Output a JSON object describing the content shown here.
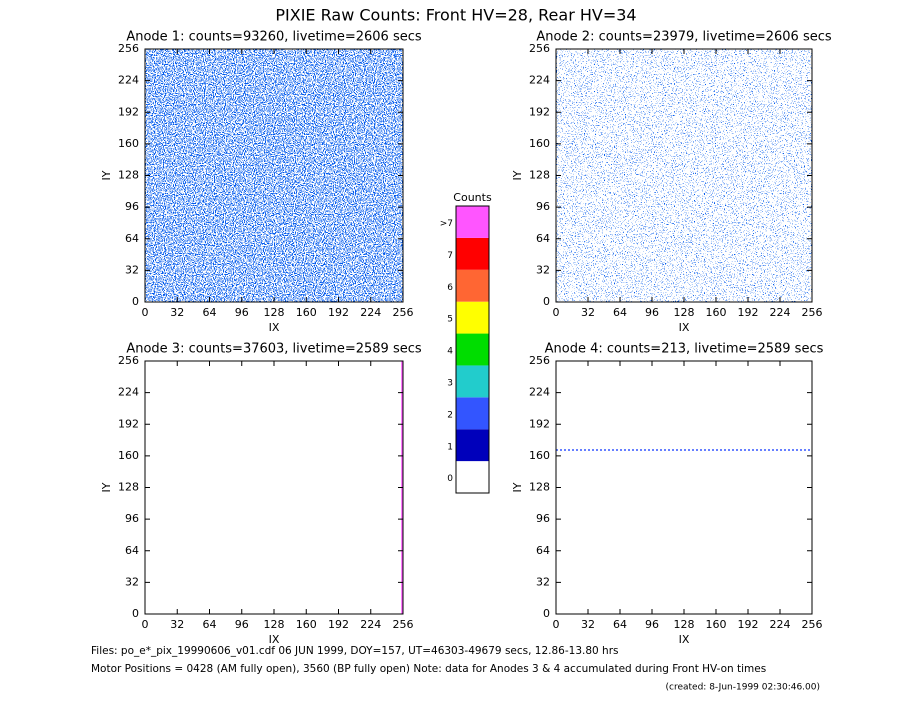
{
  "title": "PIXIE Raw Counts:  Front HV=28, Rear HV=34",
  "chart_data": [
    {
      "type": "heatmap",
      "title": "Anode 1: counts=93260, livetime=2606 secs",
      "xlabel": "IX",
      "ylabel": "IY",
      "xlim": [
        0,
        256
      ],
      "ylim": [
        0,
        256
      ],
      "xticks": [
        0,
        32,
        64,
        96,
        128,
        160,
        192,
        224,
        256
      ],
      "yticks": [
        0,
        32,
        64,
        96,
        128,
        160,
        192,
        224,
        256
      ]
    },
    {
      "type": "heatmap",
      "title": "Anode 2: counts=23979, livetime=2606 secs",
      "xlabel": "IX",
      "ylabel": "IY",
      "xlim": [
        0,
        256
      ],
      "ylim": [
        0,
        256
      ],
      "xticks": [
        0,
        32,
        64,
        96,
        128,
        160,
        192,
        224,
        256
      ],
      "yticks": [
        0,
        32,
        64,
        96,
        128,
        160,
        192,
        224,
        256
      ]
    },
    {
      "type": "heatmap",
      "title": "Anode 3: counts=37603, livetime=2589 secs",
      "xlabel": "IX",
      "ylabel": "IY",
      "xlim": [
        0,
        256
      ],
      "ylim": [
        0,
        256
      ],
      "xticks": [
        0,
        32,
        64,
        96,
        128,
        160,
        192,
        224,
        256
      ],
      "yticks": [
        0,
        32,
        64,
        96,
        128,
        160,
        192,
        224,
        256
      ]
    },
    {
      "type": "heatmap",
      "title": "Anode 4: counts=213, livetime=2589 secs",
      "xlabel": "IX",
      "ylabel": "IY",
      "xlim": [
        0,
        256
      ],
      "ylim": [
        0,
        256
      ],
      "xticks": [
        0,
        32,
        64,
        96,
        128,
        160,
        192,
        224,
        256
      ],
      "yticks": [
        0,
        32,
        64,
        96,
        128,
        160,
        192,
        224,
        256
      ]
    }
  ],
  "colorbar": {
    "title": "Counts",
    "labels": [
      0,
      1,
      2,
      3,
      4,
      5,
      6,
      7,
      ">7"
    ],
    "colors": [
      "#ffffff",
      "#0000bb",
      "#3355ff",
      "#22cccc",
      "#00dd00",
      "#ffff00",
      "#ff6633",
      "#ff0000",
      "#ff55ff"
    ]
  },
  "footer": {
    "files": "Files: po_e*_pix_19990606_v01.cdf    06 JUN 1999, DOY=157, UT=46303-49679 secs, 12.86-13.80 hrs",
    "motor": "Motor Positions = 0428 (AM fully open), 3560 (BP fully open)    Note: data for Anodes 3 & 4 accumulated during Front HV-on times",
    "created": "(created:  8-Jun-1999 02:30:46.00)"
  }
}
